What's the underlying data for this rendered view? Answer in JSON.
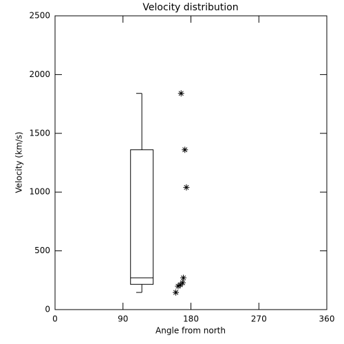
{
  "chart_data": {
    "type": "box",
    "title": "Velocity distribution",
    "xlabel": "Angle from north",
    "ylabel": "Velocity (km/s)",
    "xlim": [
      0,
      360
    ],
    "xticks": [
      0,
      90,
      180,
      270,
      360
    ],
    "ylim": [
      0,
      2500
    ],
    "yticks": [
      0,
      500,
      1000,
      1500,
      2000,
      2500
    ],
    "color": "#000000",
    "boxes": [
      {
        "position": 115,
        "width": 30,
        "whislo": 146,
        "q1": 215,
        "med": 270,
        "q3": 1360,
        "whishi": 1840
      }
    ],
    "points": {
      "marker": "asterisk",
      "x": [
        167,
        172,
        174,
        170,
        160,
        163,
        166,
        169
      ],
      "y": [
        1840,
        1360,
        1040,
        270,
        146,
        199,
        211,
        228
      ]
    }
  }
}
